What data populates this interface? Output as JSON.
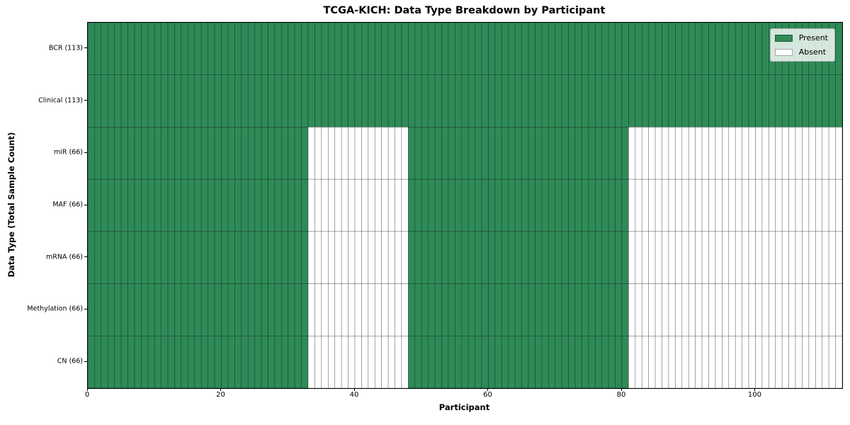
{
  "figure": {
    "background": "#ffffff"
  },
  "chart_data": {
    "type": "heatmap",
    "title": "TCGA-KICH: Data Type Breakdown by Participant",
    "xlabel": "Participant",
    "ylabel": "Data Type (Total Sample Count)",
    "n_participants": 113,
    "x_ticks": [
      0,
      20,
      40,
      60,
      80,
      100
    ],
    "rows": [
      {
        "label": "BCR (113)",
        "data_type": "BCR",
        "sample_count": 113,
        "present_ranges": [
          [
            0,
            113
          ]
        ]
      },
      {
        "label": "Clinical (113)",
        "data_type": "Clinical",
        "sample_count": 113,
        "present_ranges": [
          [
            0,
            113
          ]
        ]
      },
      {
        "label": "miR (66)",
        "data_type": "miR",
        "sample_count": 66,
        "present_ranges": [
          [
            0,
            33
          ],
          [
            48,
            81
          ]
        ]
      },
      {
        "label": "MAF (66)",
        "data_type": "MAF",
        "sample_count": 66,
        "present_ranges": [
          [
            0,
            33
          ],
          [
            48,
            81
          ]
        ]
      },
      {
        "label": "mRNA (66)",
        "data_type": "mRNA",
        "sample_count": 66,
        "present_ranges": [
          [
            0,
            33
          ],
          [
            48,
            81
          ]
        ]
      },
      {
        "label": "Methylation (66)",
        "data_type": "Methylation",
        "sample_count": 66,
        "present_ranges": [
          [
            0,
            33
          ],
          [
            48,
            81
          ]
        ]
      },
      {
        "label": "CN (66)",
        "data_type": "CN",
        "sample_count": 66,
        "present_ranges": [
          [
            0,
            33
          ],
          [
            48,
            81
          ]
        ]
      }
    ],
    "legend": {
      "position": "upper right",
      "entries": [
        {
          "label": "Present",
          "color": "#2e8b57"
        },
        {
          "label": "Absent",
          "color": "#ffffff"
        }
      ]
    },
    "colors": {
      "present": "#2e8b57",
      "absent": "#ffffff",
      "cell_edge": "#000000",
      "cell_edge_opacity": 0.45
    }
  }
}
